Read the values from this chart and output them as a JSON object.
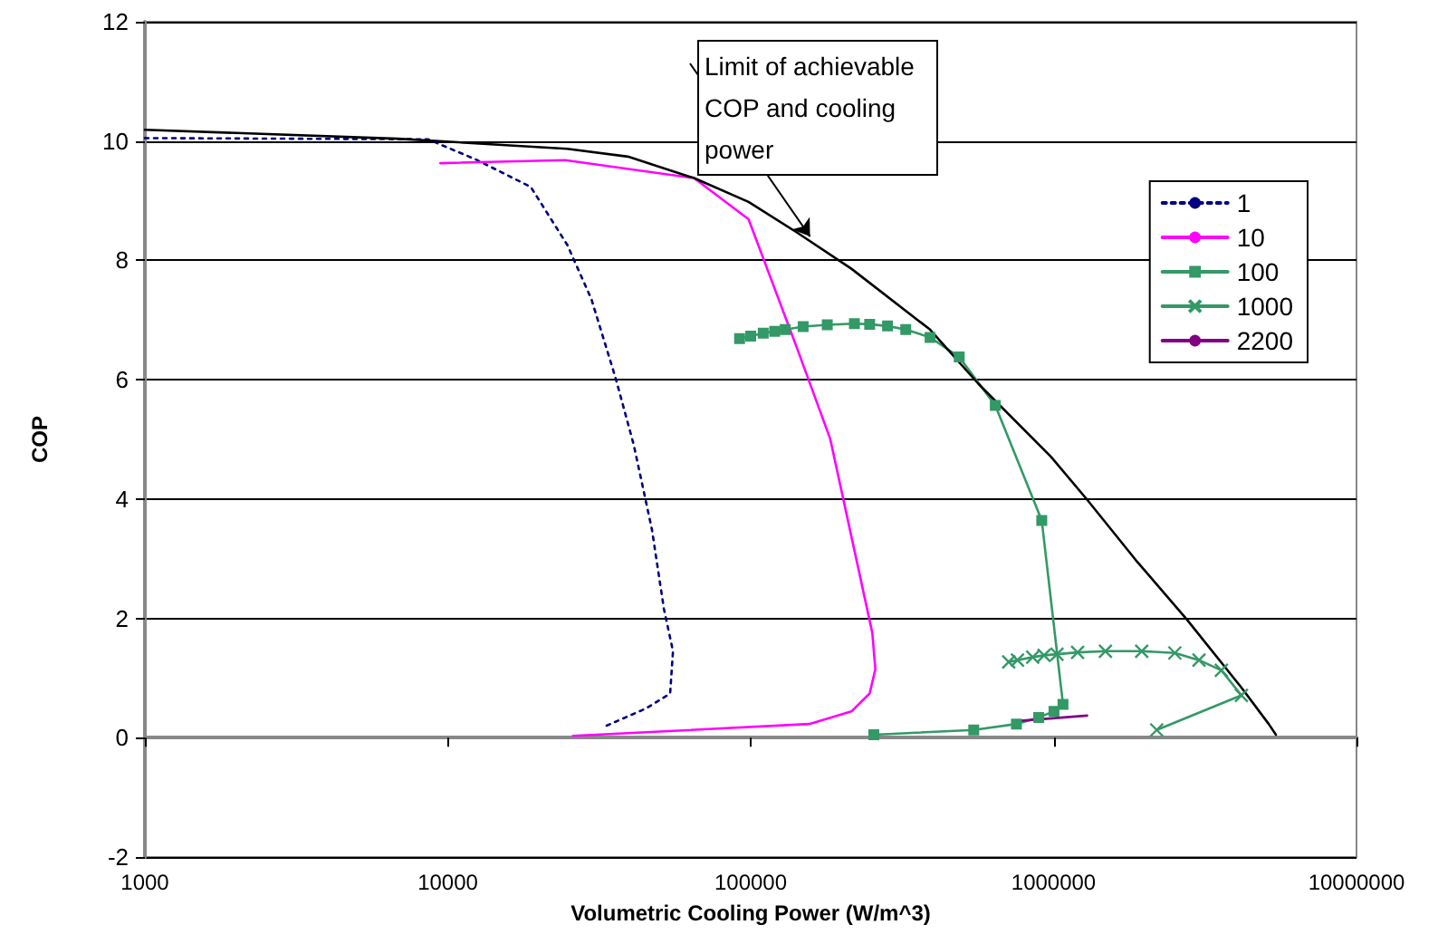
{
  "chart_data": {
    "type": "line",
    "xlabel": "Volumetric Cooling Power (W/m^3)",
    "ylabel": "COP",
    "log": "x",
    "xlim": [
      1000,
      10000000
    ],
    "xticks": [
      1000,
      10000,
      100000,
      1000000,
      10000000
    ],
    "ylim": [
      -2,
      12
    ],
    "yticks": [
      -2,
      0,
      2,
      4,
      6,
      8,
      10,
      12
    ],
    "grid": "y",
    "legend": "top right",
    "marker": "none",
    "annotations": [
      {
        "text": "Limit of achievable COP and cooling power",
        "x": 157000,
        "y": 8.4
      }
    ],
    "series": [
      {
        "name": "1",
        "color": "#000080",
        "line_style": "dotted",
        "x": [
          1000,
          8600,
          12400,
          18800,
          24800,
          29800,
          35800,
          41100,
          47200,
          51700,
          55400,
          54200,
          45100,
          32700
        ],
        "values": [
          10.05,
          10.03,
          9.69,
          9.23,
          8.26,
          7.35,
          6.03,
          4.91,
          3.49,
          2.16,
          1.45,
          0.74,
          0.49,
          0.18
        ]
      },
      {
        "name": "10",
        "color": "#ff00ff",
        "x": [
          25900,
          156000,
          215000,
          247000,
          258000,
          252000,
          183000,
          142000,
          98400,
          65000,
          24400,
          9450
        ],
        "values": [
          0.03,
          0.23,
          0.44,
          0.74,
          1.15,
          1.76,
          5.01,
          6.54,
          8.69,
          9.38,
          9.68,
          9.63
        ]
      },
      {
        "name": "100",
        "color": "#339966",
        "marker": "square",
        "x": [
          91900,
          100000,
          110000,
          120000,
          130000,
          149000,
          179000,
          220000,
          247000,
          283000,
          325000,
          391000,
          488000,
          642000,
          914000,
          1074000,
          1003000,
          893000,
          754000,
          545000,
          255000
        ],
        "values": [
          6.69,
          6.73,
          6.78,
          6.81,
          6.84,
          6.89,
          6.92,
          6.94,
          6.93,
          6.9,
          6.84,
          6.71,
          6.38,
          5.57,
          3.64,
          0.56,
          0.44,
          0.34,
          0.23,
          0.13,
          0.05
        ]
      },
      {
        "name": "1000",
        "color": "#339966",
        "marker": "cross",
        "x": [
          711000,
          760000,
          853000,
          930000,
          1026000,
          1200000,
          1483000,
          1954000,
          2513000,
          3020000,
          3580000,
          4170000,
          2190000
        ],
        "values": [
          1.27,
          1.3,
          1.35,
          1.38,
          1.4,
          1.43,
          1.45,
          1.45,
          1.42,
          1.3,
          1.13,
          0.71,
          0.13
        ]
      },
      {
        "name": "2200",
        "color": "#800080",
        "x": [
          760000,
          1290000
        ],
        "values": [
          0.28,
          0.37
        ]
      },
      {
        "color": "#000000",
        "x": [
          1000,
          6840,
          24800,
          39300,
          65000,
          98400,
          142000,
          215000,
          391000,
          565000,
          980000,
          1290000,
          1866000,
          2755000,
          4170000,
          5130000,
          5420000
        ],
        "values": [
          10.19,
          10.04,
          9.87,
          9.74,
          9.38,
          8.98,
          8.47,
          7.86,
          6.84,
          5.93,
          4.71,
          3.99,
          2.98,
          1.98,
          0.84,
          0.23,
          0.05
        ]
      }
    ]
  }
}
